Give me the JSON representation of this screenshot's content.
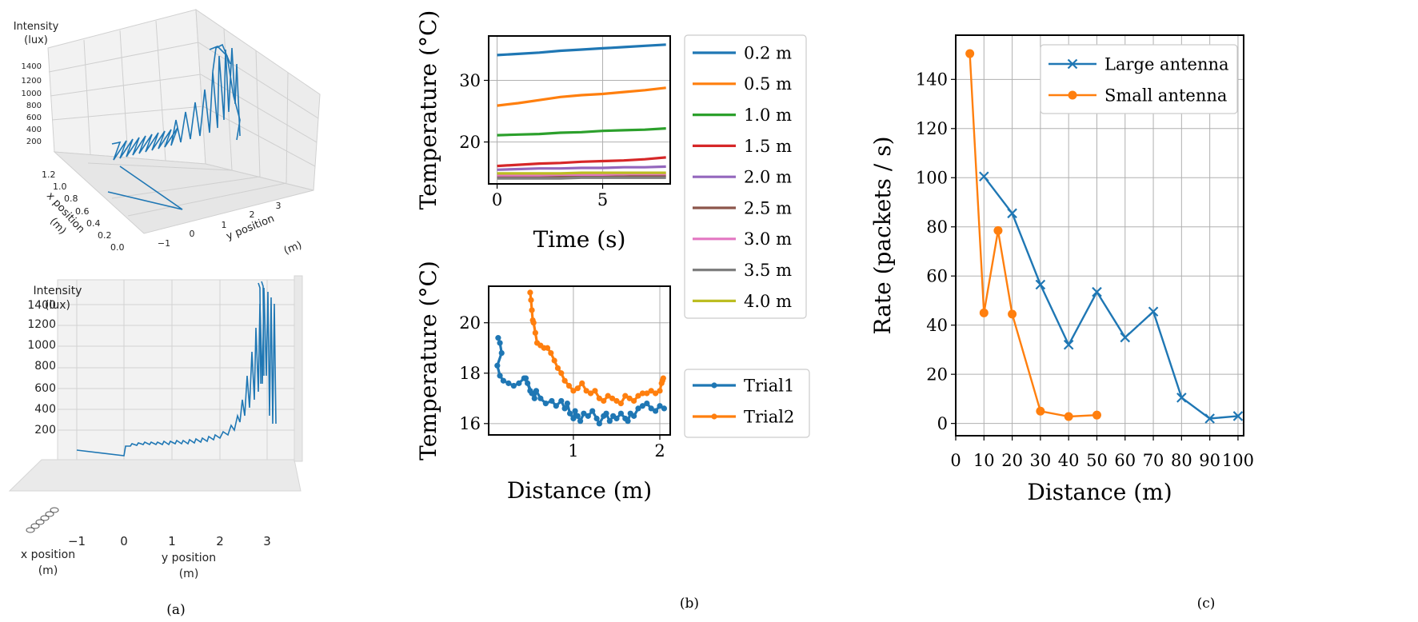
{
  "colors": {
    "c0": "#1f77b4",
    "c1": "#ff7f0e",
    "c2": "#2ca02c",
    "c3": "#d62728",
    "c4": "#9467bd",
    "c5": "#8c564b",
    "c6": "#e377c2",
    "c7": "#7f7f7f",
    "c8": "#bcbd22"
  },
  "panel_labels": {
    "a": "(a)",
    "b": "(b)",
    "c": "(c)"
  },
  "panel_a": {
    "top": {
      "zlabel_line1": "Intensity",
      "zlabel_line2": "(lux)",
      "zticks": [
        "1400",
        "1200",
        "1000",
        "800",
        "600",
        "400",
        "200"
      ],
      "xticks": [
        "1.2",
        "1.0",
        "0.8",
        "0.6",
        "0.4",
        "0.2",
        "0.0"
      ],
      "yticks": [
        "−1",
        "0",
        "1",
        "2",
        "3"
      ],
      "xlabel_line1": "x position",
      "xlabel_line2": "(m)",
      "ylabel_line1": "y position",
      "ylabel_line2": "(m)"
    },
    "bottom": {
      "zlabel_line1": "Intensity",
      "zlabel_line2": "(lux)",
      "zticks": [
        "1400",
        "1200",
        "1000",
        "800",
        "600",
        "400",
        "200"
      ],
      "yticks": [
        "−1",
        "0",
        "1",
        "2",
        "3"
      ],
      "xlabel_line1": "x position",
      "xlabel_line2": "(m)",
      "ylabel_line1": "y position",
      "ylabel_line2": "(m)"
    }
  },
  "chart_data": [
    {
      "id": "temp_vs_time",
      "type": "line",
      "xlabel": "Time (s)",
      "ylabel": "Temperature (°C)",
      "xlim": [
        -0.4,
        8.2
      ],
      "ylim": [
        13.2,
        37.2
      ],
      "xticks": [
        0,
        5
      ],
      "yticks": [
        20,
        30
      ],
      "grid": true,
      "legend_position": "right",
      "series": [
        {
          "name": "0.2 m",
          "color_key": "c0",
          "x": [
            0,
            1,
            2,
            3,
            4,
            5,
            6,
            7,
            8
          ],
          "y": [
            34.1,
            34.3,
            34.5,
            34.8,
            35.0,
            35.2,
            35.4,
            35.6,
            35.8
          ]
        },
        {
          "name": "0.5 m",
          "color_key": "c1",
          "x": [
            0,
            1,
            2,
            3,
            4,
            5,
            6,
            7,
            8
          ],
          "y": [
            25.9,
            26.3,
            26.8,
            27.3,
            27.6,
            27.8,
            28.1,
            28.4,
            28.8
          ]
        },
        {
          "name": "1.0 m",
          "color_key": "c2",
          "x": [
            0,
            1,
            2,
            3,
            4,
            5,
            6,
            7,
            8
          ],
          "y": [
            21.1,
            21.2,
            21.3,
            21.5,
            21.6,
            21.8,
            21.9,
            22.0,
            22.2
          ]
        },
        {
          "name": "1.5 m",
          "color_key": "c3",
          "x": [
            0,
            1,
            2,
            3,
            4,
            5,
            6,
            7,
            8
          ],
          "y": [
            16.1,
            16.3,
            16.5,
            16.6,
            16.8,
            16.9,
            17.0,
            17.2,
            17.5
          ]
        },
        {
          "name": "2.0 m",
          "color_key": "c4",
          "x": [
            0,
            1,
            2,
            3,
            4,
            5,
            6,
            7,
            8
          ],
          "y": [
            15.5,
            15.6,
            15.7,
            15.7,
            15.8,
            15.8,
            15.9,
            15.9,
            16.0
          ]
        },
        {
          "name": "2.5 m",
          "color_key": "c5",
          "x": [
            0,
            1,
            2,
            3,
            4,
            5,
            6,
            7,
            8
          ],
          "y": [
            14.3,
            14.3,
            14.3,
            14.4,
            14.4,
            14.4,
            14.4,
            14.5,
            14.5
          ]
        },
        {
          "name": "3.0 m",
          "color_key": "c6",
          "x": [
            0,
            1,
            2,
            3,
            4,
            5,
            6,
            7,
            8
          ],
          "y": [
            14.6,
            14.6,
            14.6,
            14.7,
            14.7,
            14.7,
            14.8,
            14.8,
            14.8
          ]
        },
        {
          "name": "3.5 m",
          "color_key": "c7",
          "x": [
            0,
            1,
            2,
            3,
            4,
            5,
            6,
            7,
            8
          ],
          "y": [
            14.1,
            14.1,
            14.1,
            14.1,
            14.2,
            14.2,
            14.2,
            14.2,
            14.2
          ]
        },
        {
          "name": "4.0 m",
          "color_key": "c8",
          "x": [
            0,
            1,
            2,
            3,
            4,
            5,
            6,
            7,
            8
          ],
          "y": [
            14.9,
            14.9,
            14.9,
            14.9,
            15.0,
            15.0,
            15.0,
            15.0,
            15.0
          ]
        }
      ]
    },
    {
      "id": "temp_vs_distance",
      "type": "line",
      "xlabel": "Distance (m)",
      "ylabel": "Temperature (°C)",
      "xlim": [
        0.02,
        2.12
      ],
      "ylim": [
        15.55,
        21.45
      ],
      "xticks": [
        1,
        2
      ],
      "yticks": [
        16,
        18,
        20
      ],
      "grid": true,
      "legend_position": "right",
      "series": [
        {
          "name": "Trial1",
          "color_key": "c0",
          "x": [
            0.13,
            0.15,
            0.17,
            0.12,
            0.15,
            0.19,
            0.25,
            0.31,
            0.37,
            0.43,
            0.47,
            0.5,
            0.45,
            0.52,
            0.55,
            0.57,
            0.62,
            0.68,
            0.75,
            0.8,
            0.86,
            0.9,
            0.93,
            0.96,
            1.0,
            1.02,
            1.05,
            1.08,
            1.12,
            1.17,
            1.22,
            1.27,
            1.3,
            1.35,
            1.38,
            1.42,
            1.46,
            1.5,
            1.55,
            1.6,
            1.63,
            1.66,
            1.7,
            1.75,
            1.8,
            1.85,
            1.9,
            1.95,
            2.0,
            2.05
          ],
          "y": [
            19.4,
            19.2,
            18.8,
            18.3,
            17.9,
            17.7,
            17.6,
            17.5,
            17.6,
            17.8,
            17.6,
            17.3,
            17.8,
            17.2,
            17.0,
            17.3,
            17.0,
            16.8,
            16.9,
            16.7,
            16.9,
            16.6,
            16.8,
            16.4,
            16.2,
            16.5,
            16.3,
            16.1,
            16.4,
            16.3,
            16.5,
            16.2,
            16.0,
            16.3,
            16.4,
            16.1,
            16.3,
            16.2,
            16.4,
            16.2,
            16.1,
            16.4,
            16.3,
            16.6,
            16.7,
            16.8,
            16.6,
            16.5,
            16.7,
            16.6
          ]
        },
        {
          "name": "Trial2",
          "color_key": "c1",
          "x": [
            0.5,
            0.51,
            0.52,
            0.53,
            0.54,
            0.56,
            0.58,
            0.62,
            0.66,
            0.7,
            0.74,
            0.78,
            0.82,
            0.86,
            0.9,
            0.95,
            1.0,
            1.05,
            1.1,
            1.15,
            1.2,
            1.25,
            1.3,
            1.35,
            1.4,
            1.45,
            1.5,
            1.55,
            1.6,
            1.65,
            1.7,
            1.75,
            1.8,
            1.85,
            1.9,
            1.95,
            2.0,
            2.02,
            2.03,
            2.04
          ],
          "y": [
            21.2,
            20.9,
            20.5,
            20.1,
            20.0,
            19.6,
            19.2,
            19.1,
            19.0,
            19.0,
            18.8,
            18.5,
            18.2,
            18.0,
            17.7,
            17.5,
            17.3,
            17.4,
            17.6,
            17.3,
            17.2,
            17.3,
            17.0,
            16.9,
            17.1,
            17.0,
            16.9,
            16.8,
            17.1,
            17.0,
            16.9,
            17.1,
            17.2,
            17.2,
            17.3,
            17.2,
            17.3,
            17.6,
            17.7,
            17.8
          ]
        }
      ]
    },
    {
      "id": "rate_vs_distance",
      "type": "line",
      "xlabel": "Distance (m)",
      "ylabel": "Rate (packets / s)",
      "xlim": [
        0,
        102
      ],
      "ylim": [
        -5,
        158
      ],
      "xticks": [
        0,
        10,
        20,
        30,
        40,
        50,
        60,
        70,
        80,
        90,
        100
      ],
      "yticks": [
        0,
        20,
        40,
        60,
        80,
        100,
        120,
        140
      ],
      "grid": true,
      "legend_position": "top-right",
      "series": [
        {
          "name": "Large antenna",
          "color_key": "c0",
          "marker": "x",
          "x": [
            10,
            20,
            30,
            40,
            50,
            60,
            70,
            80,
            90,
            100
          ],
          "y": [
            100.5,
            85.5,
            56.5,
            32.0,
            53.5,
            35.0,
            45.5,
            10.5,
            2.0,
            3.0
          ]
        },
        {
          "name": "Small antenna",
          "color_key": "c1",
          "marker": "o",
          "x": [
            5,
            10,
            15,
            20,
            30,
            40,
            50
          ],
          "y": [
            150.5,
            45.0,
            78.5,
            44.5,
            5.0,
            2.8,
            3.4
          ]
        }
      ]
    }
  ]
}
